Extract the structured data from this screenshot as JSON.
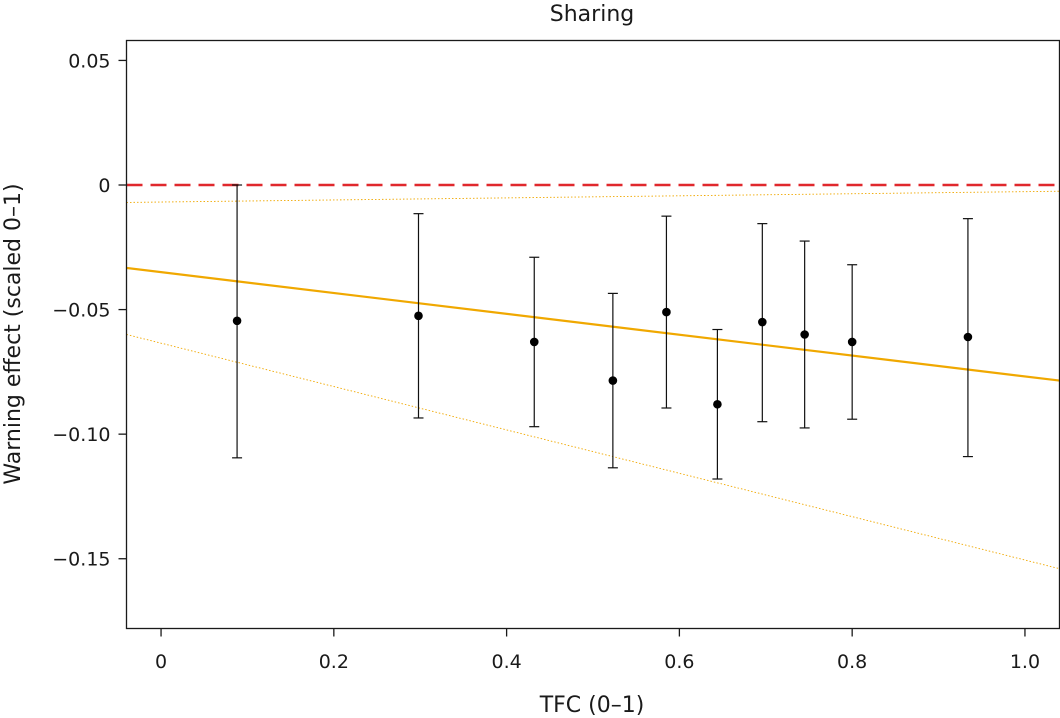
{
  "chart_data": {
    "type": "scatter",
    "title": "Sharing",
    "xlabel": "TFC (0–1)",
    "ylabel": "Warning effect (scaled 0–1)",
    "xlim": [
      -0.04,
      1.04
    ],
    "ylim": [
      -0.178,
      0.058
    ],
    "x_ticks": [
      0,
      0.2,
      0.4,
      0.6,
      0.8,
      1.0
    ],
    "x_tick_labels": [
      "0",
      "0.2",
      "0.4",
      "0.6",
      "0.8",
      "1.0"
    ],
    "y_ticks": [
      0.05,
      0,
      -0.05,
      -0.1,
      -0.15
    ],
    "y_tick_labels": [
      "0.05",
      "0",
      "−0.05",
      "−0.10",
      "−0.15"
    ],
    "points": [
      {
        "x": 0.088,
        "y": -0.0545,
        "lo": -0.1095,
        "hi": 0.0
      },
      {
        "x": 0.298,
        "y": -0.0525,
        "lo": -0.0935,
        "hi": -0.0115
      },
      {
        "x": 0.432,
        "y": -0.063,
        "lo": -0.097,
        "hi": -0.029
      },
      {
        "x": 0.523,
        "y": -0.0785,
        "lo": -0.1135,
        "hi": -0.0435
      },
      {
        "x": 0.585,
        "y": -0.051,
        "lo": -0.0895,
        "hi": -0.0125
      },
      {
        "x": 0.644,
        "y": -0.088,
        "lo": -0.118,
        "hi": -0.058
      },
      {
        "x": 0.696,
        "y": -0.055,
        "lo": -0.095,
        "hi": -0.0155
      },
      {
        "x": 0.745,
        "y": -0.06,
        "lo": -0.0975,
        "hi": -0.0225
      },
      {
        "x": 0.8,
        "y": -0.063,
        "lo": -0.094,
        "hi": -0.032
      },
      {
        "x": 0.934,
        "y": -0.061,
        "lo": -0.109,
        "hi": -0.0135
      }
    ],
    "fit_line": {
      "x": [
        -0.04,
        1.04
      ],
      "y": [
        -0.0333,
        -0.0785
      ],
      "color": "#f0a800"
    },
    "ci_upper": {
      "x": [
        -0.04,
        1.04
      ],
      "y": [
        -0.007,
        -0.0025
      ],
      "color": "#f0a800"
    },
    "ci_lower": {
      "x": [
        -0.04,
        1.04
      ],
      "y": [
        -0.06,
        -0.154
      ],
      "color": "#f0a800"
    },
    "reference_line": {
      "y": 0,
      "color": "#e0282d",
      "style": "dashed"
    },
    "grid": false
  }
}
